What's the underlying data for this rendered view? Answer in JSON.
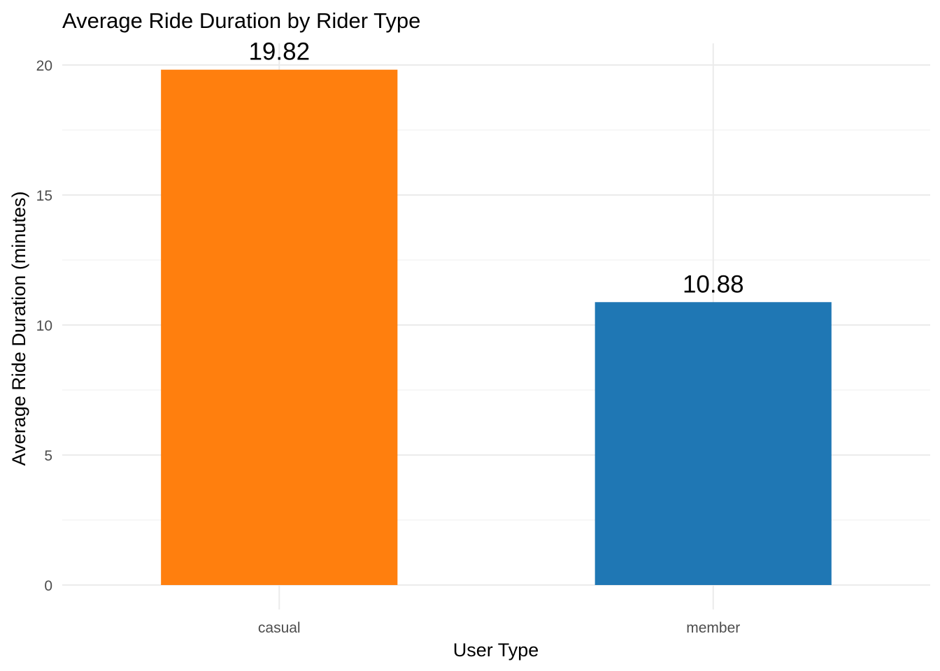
{
  "chart_data": {
    "type": "bar",
    "title": "Average Ride Duration by Rider Type",
    "xlabel": "User Type",
    "ylabel": "Average Ride Duration (minutes)",
    "categories": [
      "casual",
      "member"
    ],
    "values": [
      19.82,
      10.88
    ],
    "data_labels": [
      "19.82",
      "10.88"
    ],
    "colors": [
      "#FF7F0E",
      "#1F77B4"
    ],
    "ylim": [
      0,
      21
    ],
    "yticks": [
      0,
      5,
      10,
      15,
      20
    ],
    "ytick_labels": [
      "0",
      "5",
      "10",
      "15",
      "20"
    ],
    "grid": true,
    "legend": "none"
  }
}
